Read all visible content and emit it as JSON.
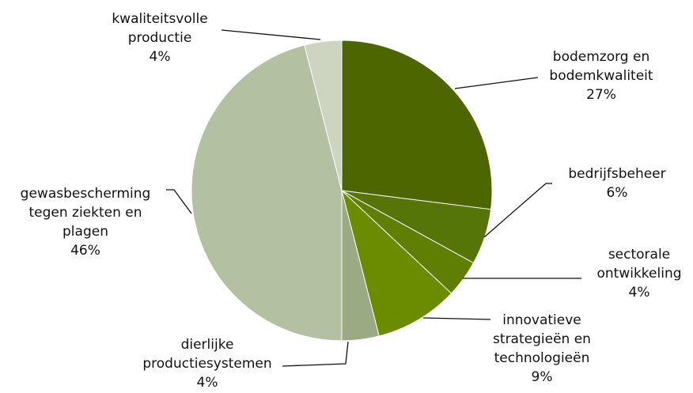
{
  "chart_data": {
    "type": "pie",
    "categories": [
      "bodemzorg en\nbodemkwaliteit",
      "bedrijfsbeheer",
      "sectorale\nontwikkeling",
      "innovatieve\nstrategieën en\ntechnologieën",
      "dierlijke\nproductiesystemen",
      "gewasbescherming\ntegen ziekten en\nplagen",
      "kwaliteitsvolle\nproductie"
    ],
    "values": [
      27,
      6,
      4,
      9,
      4,
      46,
      4
    ],
    "value_labels": [
      "27%",
      "6%",
      "4%",
      "9%",
      "4%",
      "46%",
      "4%"
    ],
    "colors": [
      "#4d6600",
      "#557508",
      "#5e7f04",
      "#6b8c00",
      "#9aaa82",
      "#b3c0a1",
      "#cdd5c1"
    ]
  }
}
